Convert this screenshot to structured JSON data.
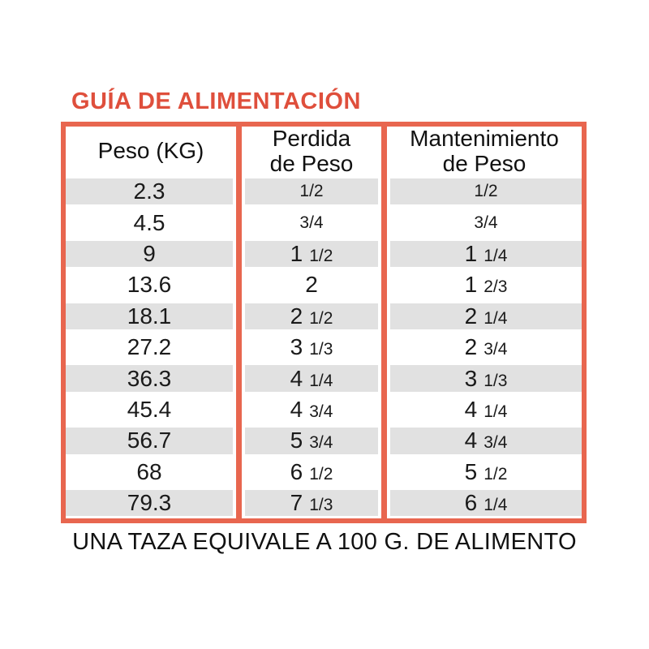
{
  "title": "GUÍA DE ALIMENTACIÓN",
  "colors": {
    "accent_title": "#df4f3c",
    "table_border": "#e8664f",
    "row_stripe": "#e1e1e1"
  },
  "table": {
    "headers": [
      {
        "line1": "Peso (KG)",
        "line2": ""
      },
      {
        "line1": "Perdida",
        "line2": "de Peso"
      },
      {
        "line1": "Mantenimiento",
        "line2": "de Peso"
      }
    ],
    "rows": [
      {
        "peso": "2.3",
        "perdida": "1/2",
        "mantenimiento": "1/2"
      },
      {
        "peso": "4.5",
        "perdida": "3/4",
        "mantenimiento": "3/4"
      },
      {
        "peso": "9",
        "perdida": "1 1/2",
        "mantenimiento": "1 1/4"
      },
      {
        "peso": "13.6",
        "perdida": "2",
        "mantenimiento": "1 2/3"
      },
      {
        "peso": "18.1",
        "perdida": "2 1/2",
        "mantenimiento": "2 1/4"
      },
      {
        "peso": "27.2",
        "perdida": "3 1/3",
        "mantenimiento": "2 3/4"
      },
      {
        "peso": "36.3",
        "perdida": "4 1/4",
        "mantenimiento": "3 1/3"
      },
      {
        "peso": "45.4",
        "perdida": "4 3/4",
        "mantenimiento": "4 1/4"
      },
      {
        "peso": "56.7",
        "perdida": "5 3/4",
        "mantenimiento": "4 3/4"
      },
      {
        "peso": "68",
        "perdida": "6 1/2",
        "mantenimiento": "5 1/2"
      },
      {
        "peso": "79.3",
        "perdida": "7 1/3",
        "mantenimiento": "6 1/4"
      }
    ]
  },
  "footer": "UNA TAZA EQUIVALE A 100 G. DE ALIMENTO"
}
